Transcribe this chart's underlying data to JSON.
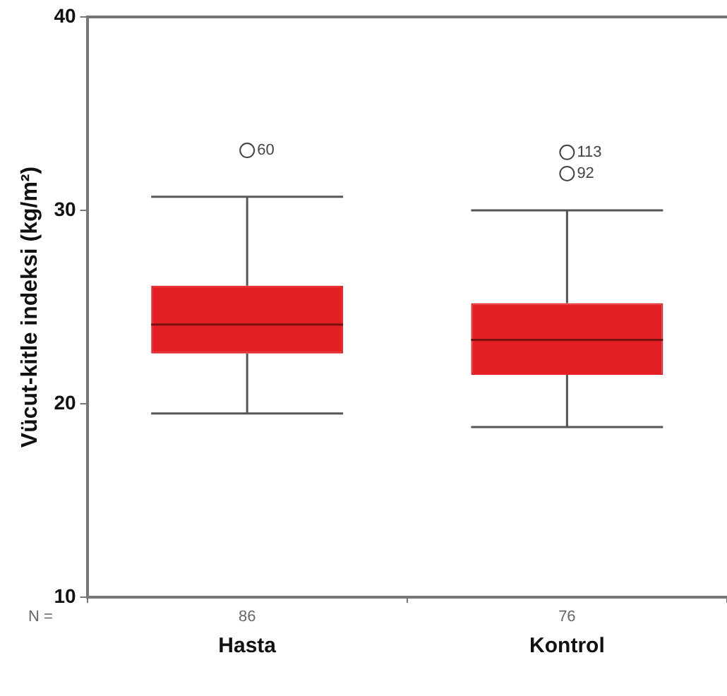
{
  "chart_data": {
    "type": "box",
    "ylabel": "Vücut-kitle indeksi (kg/m²)",
    "categories": [
      "Hasta",
      "Kontrol"
    ],
    "color": "#e31e24",
    "boxes": [
      {
        "low": 19.5,
        "q1": 22.6,
        "median": 24.1,
        "q3": 26.1,
        "high": 30.7,
        "outliers": [
          33.1
        ]
      },
      {
        "low": 18.8,
        "q1": 21.5,
        "median": 23.3,
        "q3": 25.2,
        "high": 30.0,
        "outliers": [
          33.0,
          31.9
        ]
      }
    ],
    "ylim": [
      10,
      40
    ],
    "yticks": [
      10,
      20,
      30,
      40
    ],
    "grid": false,
    "legend": false,
    "marker": "circle",
    "annotations": [
      "N =",
      "86",
      "76",
      "60",
      "113",
      "92"
    ]
  }
}
